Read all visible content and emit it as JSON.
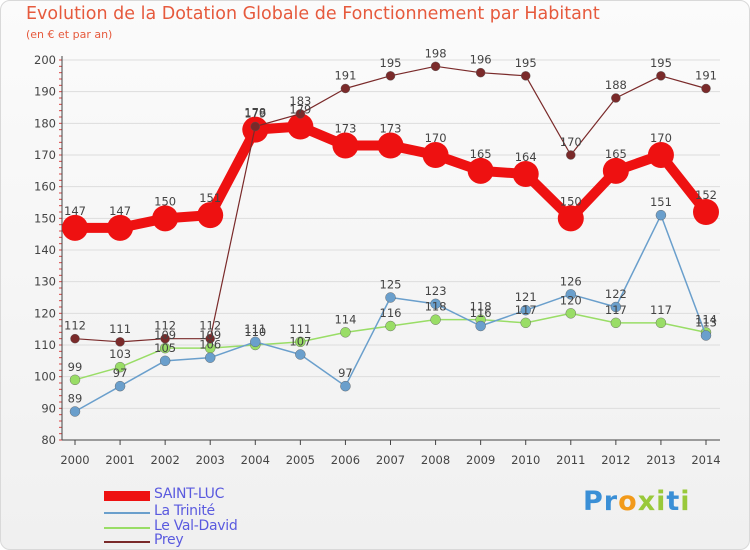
{
  "title": "Evolution de la Dotation Globale de Fonctionnement par Habitant",
  "subtitle": "(en € et par an)",
  "logo_text": "Proxiti",
  "colors": {
    "title": "#e65a3d",
    "axis": "#444444",
    "grid": "#dddddd",
    "label": "#444444",
    "legend_text": "#5a5adf"
  },
  "chart_data": {
    "type": "line",
    "title": "Evolution de la Dotation Globale de Fonctionnement par Habitant",
    "subtitle": "(en € et par an)",
    "xlabel": "",
    "ylabel": "",
    "x": [
      "2000",
      "2001",
      "2002",
      "2003",
      "2004",
      "2005",
      "2006",
      "2007",
      "2008",
      "2009",
      "2010",
      "2011",
      "2012",
      "2013",
      "2014"
    ],
    "ylim": [
      80,
      200
    ],
    "yticks": [
      80,
      90,
      100,
      110,
      120,
      130,
      140,
      150,
      160,
      170,
      180,
      190,
      200
    ],
    "grid": true,
    "legend_position": "bottom-left",
    "series": [
      {
        "name": "SAINT-LUC",
        "color": "#ee1111",
        "width": 10,
        "marker": 13,
        "values": [
          147,
          147,
          150,
          151,
          178,
          179,
          173,
          173,
          170,
          165,
          164,
          150,
          165,
          170,
          152
        ]
      },
      {
        "name": "La Trinité",
        "color": "#6a9fcc",
        "width": 1.5,
        "marker": 5,
        "values": [
          89,
          97,
          105,
          106,
          111,
          107,
          97,
          125,
          123,
          116,
          121,
          126,
          122,
          151,
          113
        ]
      },
      {
        "name": "Le Val-David",
        "color": "#99dd66",
        "width": 1.5,
        "marker": 5,
        "values": [
          99,
          103,
          109,
          109,
          110,
          111,
          114,
          116,
          118,
          118,
          117,
          120,
          117,
          117,
          114
        ]
      },
      {
        "name": "Prey",
        "color": "#7a2a2a",
        "width": 1.2,
        "marker": 4.5,
        "values": [
          112,
          111,
          112,
          112,
          179,
          183,
          191,
          195,
          198,
          196,
          195,
          170,
          188,
          195,
          191
        ]
      }
    ],
    "data_labels": {
      "SAINT-LUC": [
        "147",
        "147",
        "150",
        "151",
        "178",
        "179",
        "173",
        "173",
        "170",
        "165",
        "164",
        "150",
        "165",
        "170",
        "152"
      ],
      "La Trinité": [
        "89",
        "97",
        "105",
        "106",
        "111",
        "107",
        "97",
        "125",
        "123",
        "116",
        "121",
        "126",
        "122",
        "151",
        "113"
      ],
      "Le Val-David": [
        "99",
        "103",
        "109",
        "109",
        "110",
        "111",
        "114",
        "116",
        "118",
        "118",
        "117",
        "120",
        "117",
        "117",
        "114"
      ],
      "Prey": [
        "112",
        "111",
        "112",
        "112",
        "179",
        "183",
        "191",
        "195",
        "198",
        "196",
        "195",
        "170",
        "188",
        "195",
        "191"
      ]
    }
  },
  "legend": [
    {
      "label": "SAINT-LUC",
      "color": "#ee1111",
      "thickness": 10
    },
    {
      "label": "La Trinité",
      "color": "#6a9fcc",
      "thickness": 2
    },
    {
      "label": "Le Val-David",
      "color": "#99dd66",
      "thickness": 2
    },
    {
      "label": "Prey",
      "color": "#7a2a2a",
      "thickness": 2
    }
  ]
}
